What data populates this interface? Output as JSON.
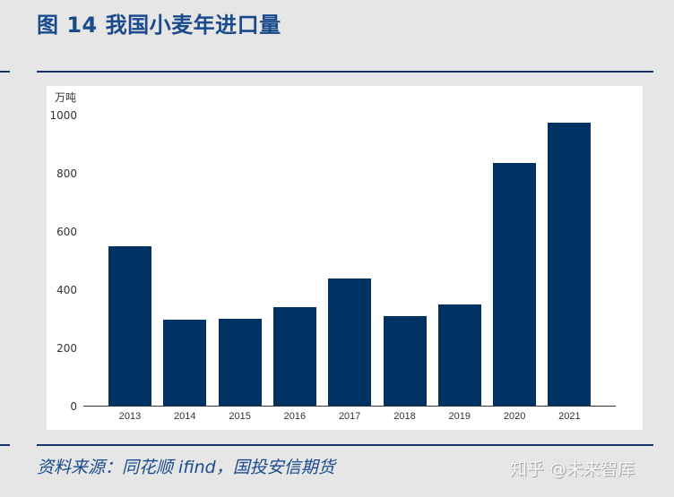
{
  "header": {
    "title": "图 14 我国小麦年进口量"
  },
  "footer": {
    "source": "资料来源：同花顺 ifind，国投安信期货",
    "watermark": "知乎 @未来智库"
  },
  "colors": {
    "bar": "#003264",
    "title": "#1a4a8c",
    "rule": "#17336b",
    "background": "#e6e6e6"
  },
  "chart_data": {
    "type": "bar",
    "title": "我国小麦年进口量",
    "xlabel": "",
    "ylabel": "万吨",
    "ylim": [
      0,
      1000
    ],
    "yticks": [
      0,
      200,
      400,
      600,
      800,
      1000
    ],
    "grid": false,
    "legend": null,
    "categories": [
      "2013",
      "2014",
      "2015",
      "2016",
      "2017",
      "2018",
      "2019",
      "2020",
      "2021"
    ],
    "values": [
      552,
      299,
      301,
      342,
      441,
      310,
      350,
      836,
      974
    ]
  },
  "yaxis": {
    "unit": "万吨",
    "ticks": [
      "1000",
      "800",
      "600",
      "400",
      "200",
      "0"
    ]
  }
}
